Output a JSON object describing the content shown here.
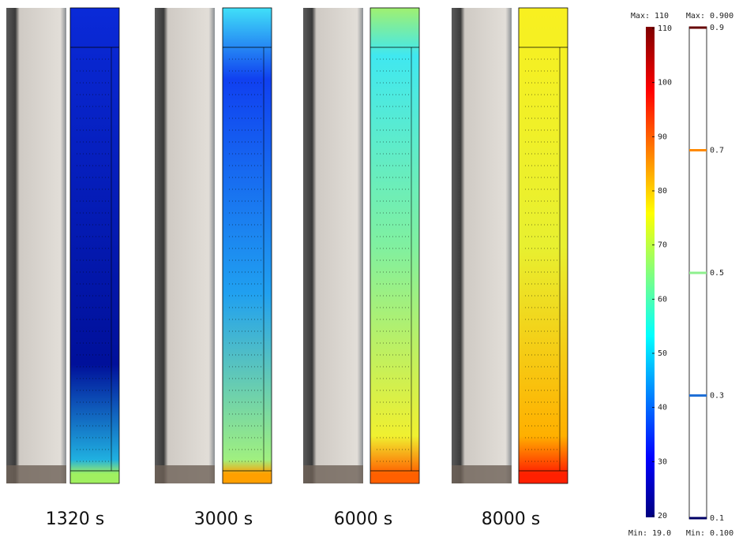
{
  "panels": [
    {
      "label": "1320 s"
    },
    {
      "label": "3000 s"
    },
    {
      "label": "6000 s"
    },
    {
      "label": "8000 s"
    }
  ],
  "colorbar_temperature": {
    "max_label": "Max: 110",
    "min_label": "Min: 19.0",
    "ticks": [
      20,
      30,
      40,
      50,
      60,
      70,
      80,
      90,
      100,
      110
    ]
  },
  "colorbar_fraction": {
    "max_label": "Max: 0.900",
    "min_label": "Min: 0.100",
    "ticks": [
      0.1,
      0.3,
      0.5,
      0.7,
      0.9
    ],
    "colors": [
      "#000066",
      "#1f6fd6",
      "#8ef08e",
      "#ff8a00",
      "#660000"
    ]
  }
}
